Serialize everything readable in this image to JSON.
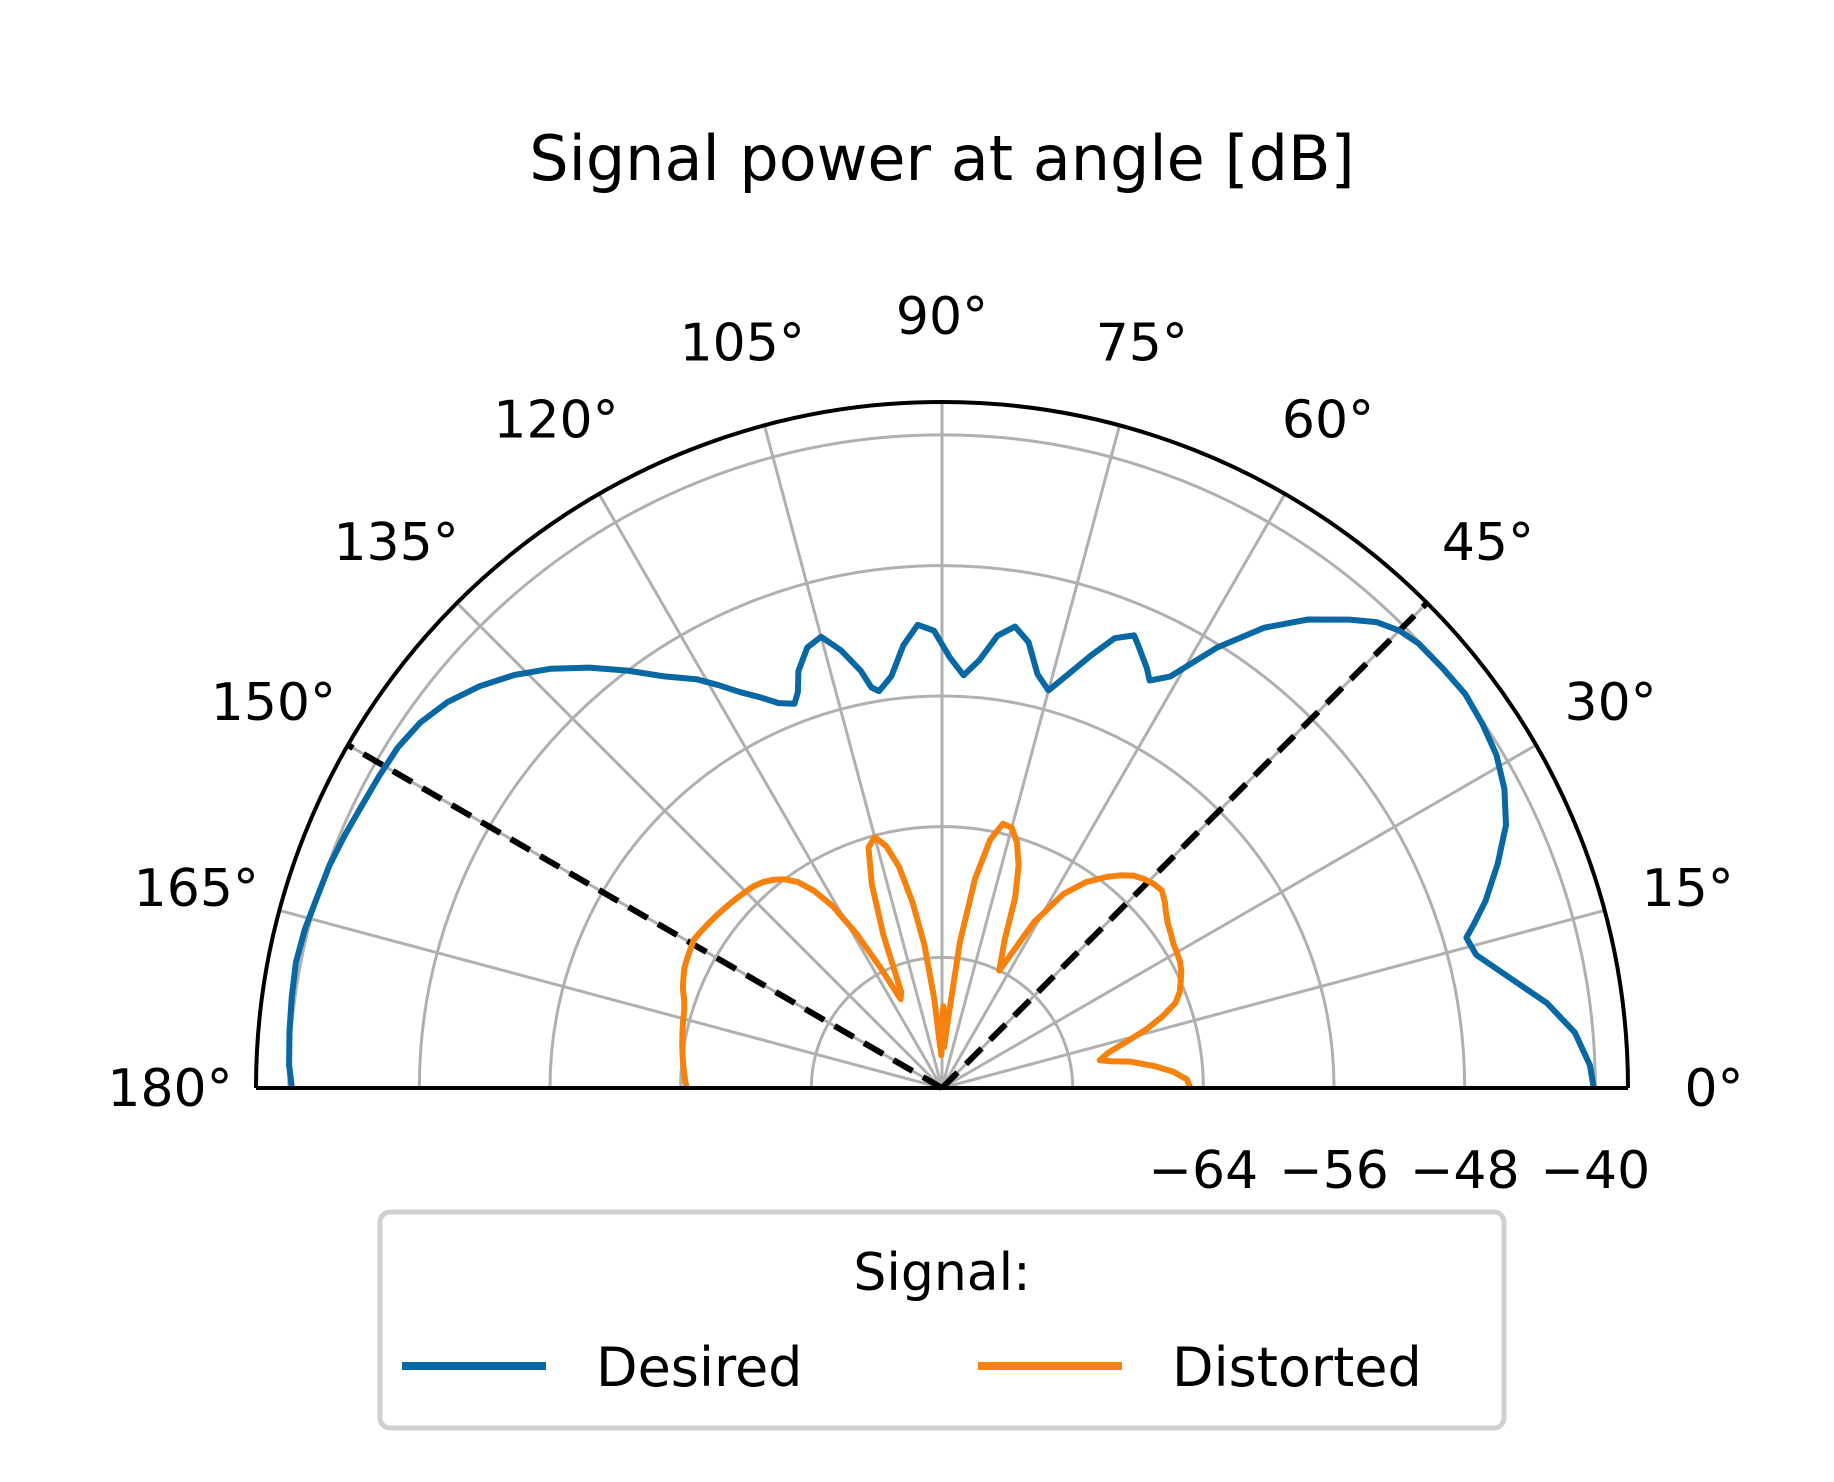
{
  "chart_data": {
    "type": "polar-line",
    "title": "Signal power at angle [dB]",
    "theta_range": [
      0,
      180
    ],
    "theta_ticks": [
      "0°",
      "15°",
      "30°",
      "45°",
      "60°",
      "75°",
      "90°",
      "105°",
      "120°",
      "135°",
      "150°",
      "165°",
      "180°"
    ],
    "r_range": [
      -80,
      -38
    ],
    "r_ticks": [
      -72,
      -64,
      -56,
      -48,
      -40
    ],
    "r_tick_labels": [
      "−64",
      "−56",
      "−48",
      "−40"
    ],
    "grid": true,
    "reference_lines_deg": [
      45,
      150
    ],
    "legend": {
      "title": "Signal:",
      "placement": "bottom",
      "entries": [
        "Desired",
        "Distorted"
      ]
    },
    "series": [
      {
        "name": "Desired",
        "color": "#0868a4",
        "theta": [
          0,
          2,
          5,
          8,
          11,
          14,
          16,
          17,
          19,
          22,
          25,
          28,
          31,
          34,
          37,
          40,
          43,
          45,
          47,
          49,
          52,
          55,
          58,
          61,
          63,
          64,
          66,
          67,
          69,
          71,
          73,
          75,
          77,
          79,
          81,
          83,
          85,
          87,
          89,
          91,
          93,
          95,
          97,
          99,
          100,
          101,
          103,
          105,
          107,
          109,
          110,
          111,
          113,
          115,
          117,
          119,
          121,
          124,
          127,
          130,
          133,
          136,
          139,
          142,
          145,
          148,
          151,
          154,
          157,
          160,
          163,
          166,
          169,
          172,
          175,
          178,
          180
        ],
        "values": [
          -40.1,
          -40.3,
          -41.1,
          -42.6,
          -44.6,
          -46.3,
          -46.6,
          -46.0,
          -44.8,
          -43.3,
          -41.9,
          -41.0,
          -40.4,
          -40.1,
          -39.9,
          -40.0,
          -40.1,
          -40.4,
          -41.0,
          -42.0,
          -43.6,
          -45.6,
          -48.2,
          -51.2,
          -52.0,
          -51.4,
          -50.4,
          -49.9,
          -50.5,
          -52.0,
          -53.5,
          -54.8,
          -54.0,
          -52.2,
          -51.4,
          -52.1,
          -53.7,
          -54.7,
          -53.6,
          -52.0,
          -51.6,
          -52.8,
          -54.6,
          -55.4,
          -55.1,
          -54.0,
          -52.5,
          -51.4,
          -51.8,
          -53.0,
          -54.2,
          -54.8,
          -54.4,
          -53.6,
          -52.8,
          -51.8,
          -50.8,
          -49.6,
          -48.0,
          -46.4,
          -44.9,
          -43.6,
          -42.5,
          -41.6,
          -41.0,
          -40.7,
          -40.6,
          -40.5,
          -40.3,
          -40.1,
          -40.0,
          -39.8,
          -39.7,
          -39.8,
          -39.9,
          -40.0,
          -40.2
        ]
      },
      {
        "name": "Distorted",
        "color": "#f5820e",
        "theta": [
          0,
          2,
          4,
          6,
          8,
          9,
          10,
          12,
          14,
          16,
          18,
          20,
          22,
          24,
          26,
          28,
          30,
          32,
          34,
          36,
          38,
          40,
          42,
          44,
          46,
          48,
          50,
          52,
          55,
          58,
          61,
          64,
          67,
          69,
          71,
          73,
          75,
          77,
          79,
          81,
          83,
          85,
          87,
          88,
          89,
          90,
          91,
          93,
          95,
          97,
          99,
          101,
          103,
          105,
          107,
          109,
          111,
          113,
          115,
          117,
          119,
          121,
          123,
          125,
          127,
          129,
          131,
          133,
          135,
          137,
          139,
          141,
          143,
          145,
          147,
          149,
          151,
          153,
          155,
          157,
          159,
          161,
          163,
          165,
          167,
          169,
          171,
          173,
          175,
          177,
          179,
          180
        ],
        "values": [
          -64.8,
          -65.0,
          -65.8,
          -67.0,
          -68.4,
          -69.5,
          -70.2,
          -69.6,
          -68.4,
          -67.0,
          -65.8,
          -64.8,
          -64.3,
          -64.0,
          -63.7,
          -63.5,
          -63.4,
          -63.3,
          -63.1,
          -62.9,
          -62.6,
          -62.2,
          -61.9,
          -62.0,
          -62.2,
          -62.5,
          -63.0,
          -63.6,
          -64.6,
          -66.0,
          -68.4,
          -72.0,
          -70.2,
          -67.5,
          -65.6,
          -64.3,
          -63.5,
          -63.4,
          -64.5,
          -67.0,
          -71.0,
          -75.8,
          -77.5,
          -76.0,
          -75.0,
          -76.0,
          -78.0,
          -77.2,
          -74.5,
          -71.2,
          -68.5,
          -66.2,
          -64.8,
          -64.1,
          -64.6,
          -66.8,
          -70.0,
          -73.6,
          -74.0,
          -71.8,
          -69.2,
          -67.0,
          -65.6,
          -64.6,
          -64.0,
          -63.6,
          -63.3,
          -63.1,
          -63.0,
          -62.9,
          -62.8,
          -62.7,
          -62.6,
          -62.5,
          -62.4,
          -62.3,
          -62.4,
          -62.5,
          -62.6,
          -62.8,
          -63.0,
          -63.3,
          -63.5,
          -63.6,
          -63.7,
          -63.8,
          -63.9,
          -64.0,
          -64.1,
          -64.2,
          -64.3,
          -64.4
        ]
      }
    ]
  }
}
